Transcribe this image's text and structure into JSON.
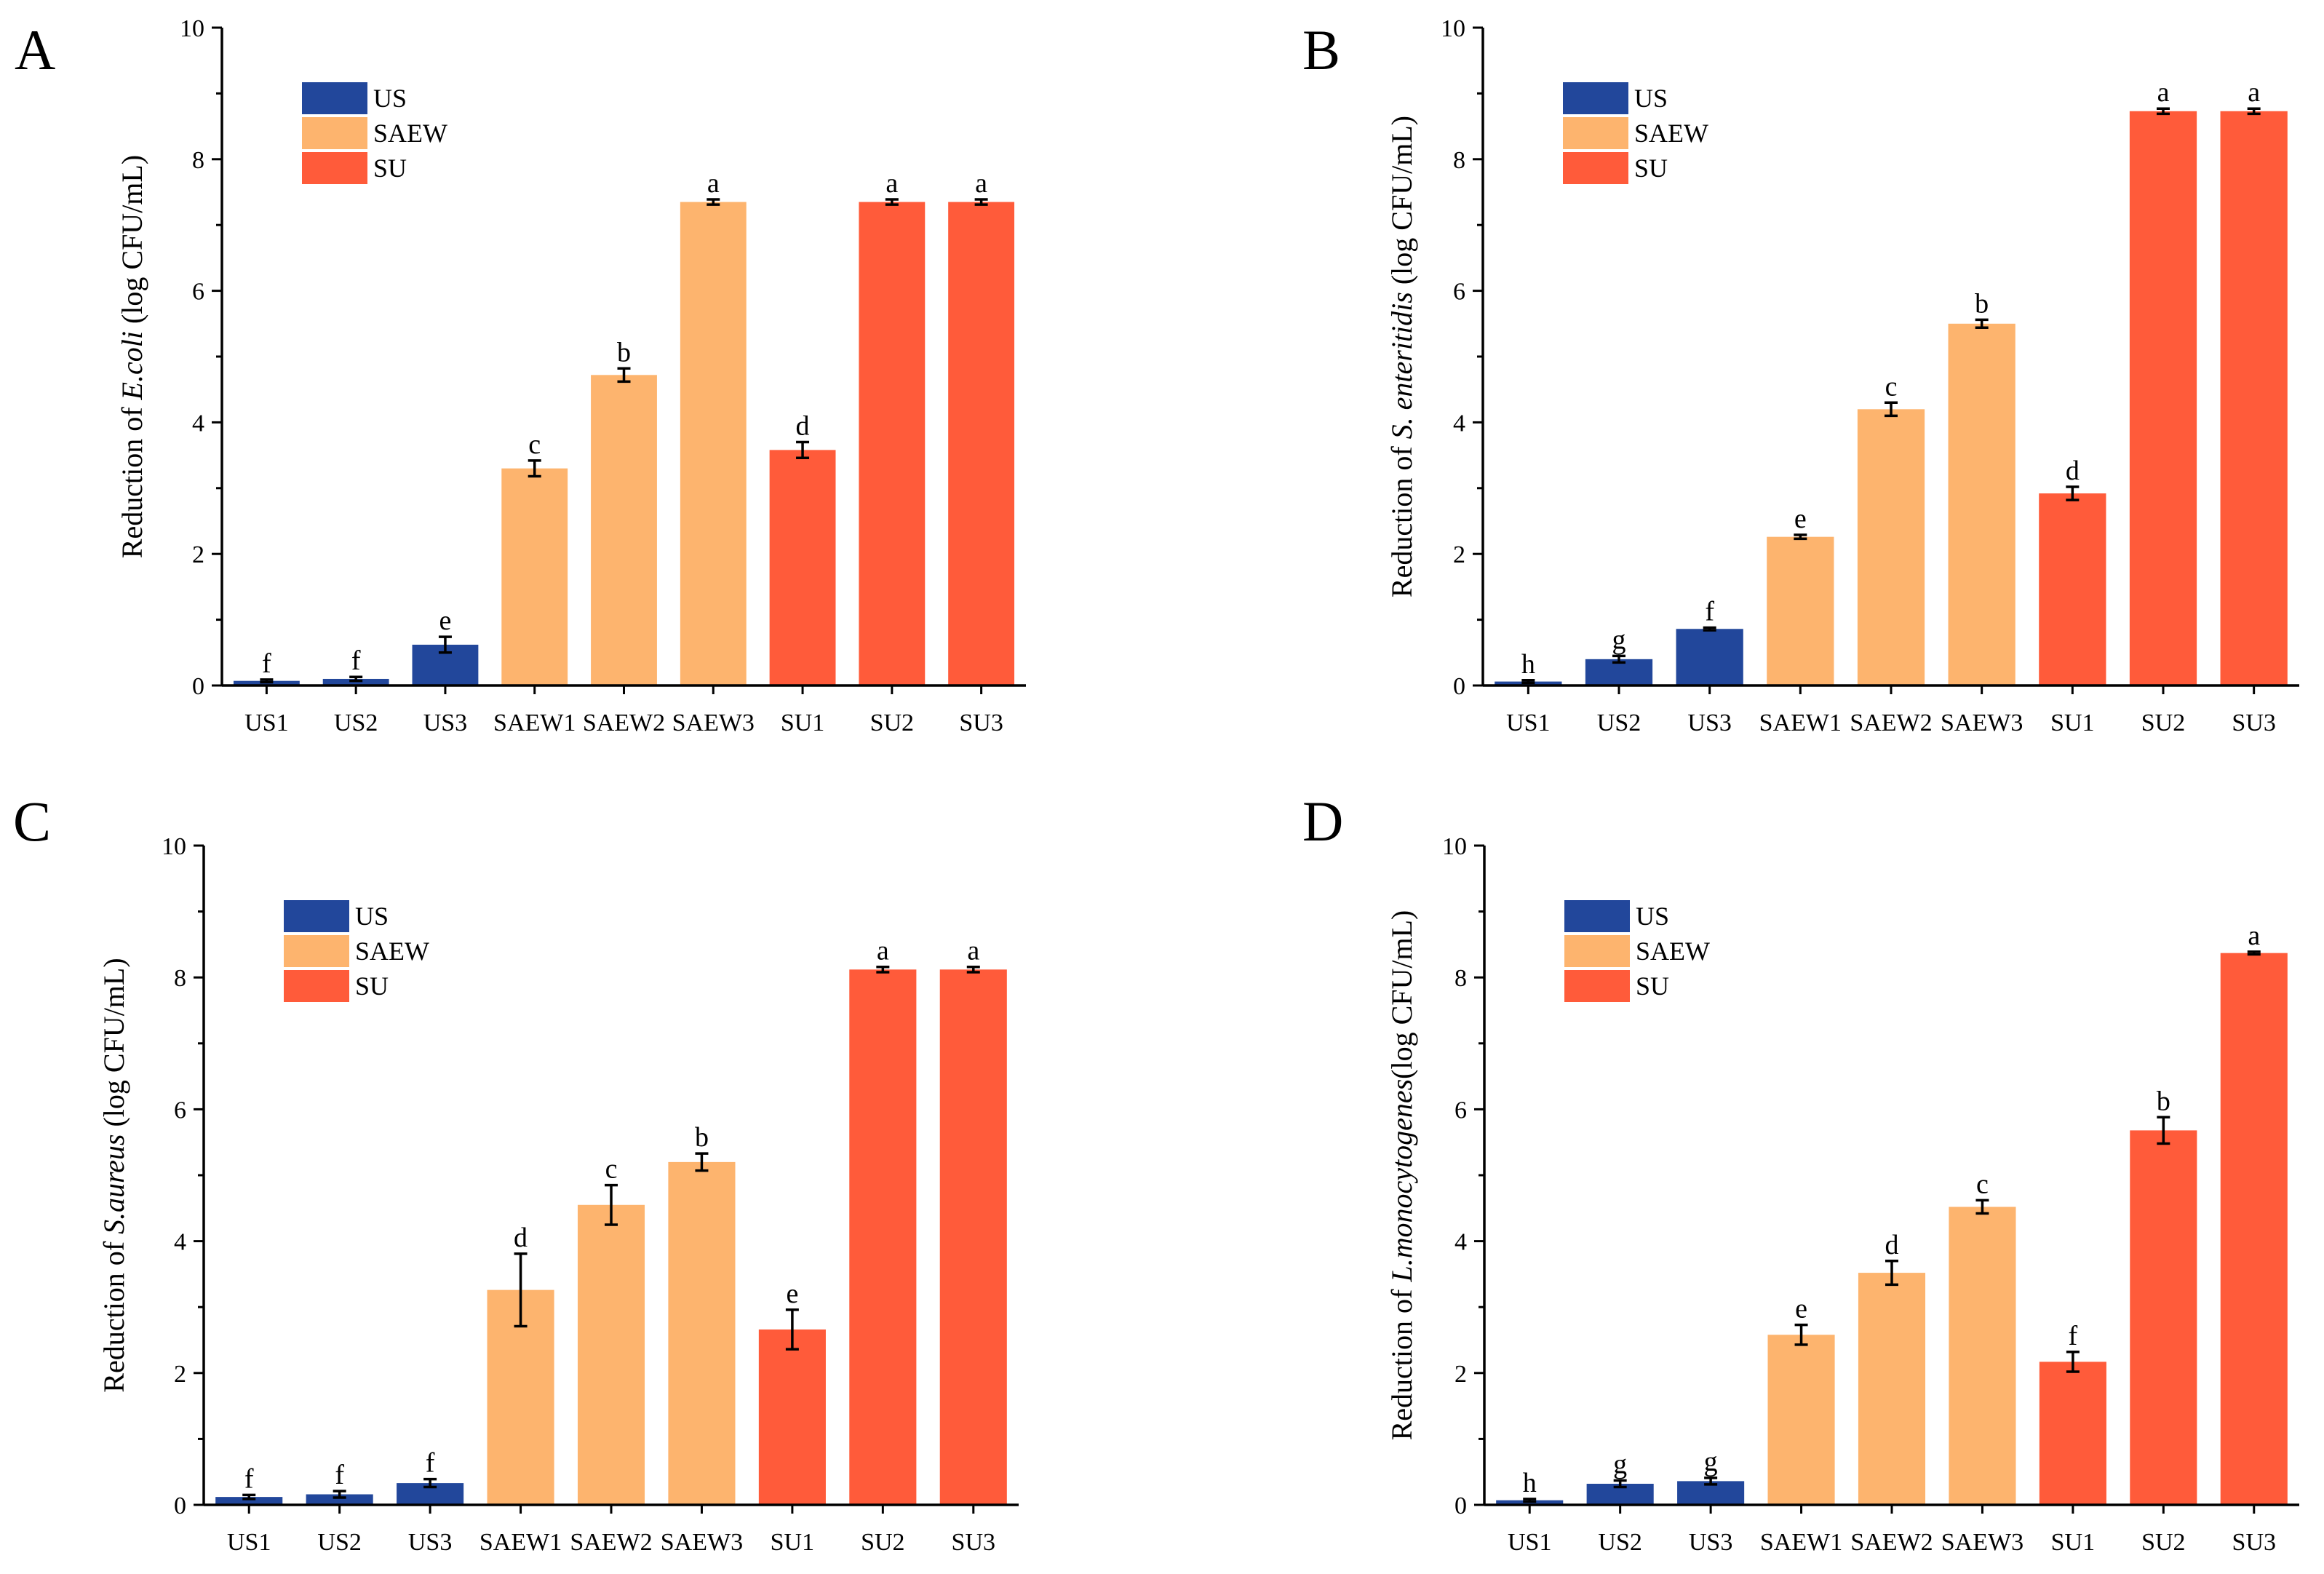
{
  "colors": {
    "US": "#22479b",
    "SAEW": "#fdb46e",
    "SU": "#ff5b3a",
    "axis": "#000000"
  },
  "chart_data": [
    {
      "type": "bar",
      "panel": "A",
      "ylabel_prefix": "Reduction of ",
      "ylabel_species": "E.coli",
      "ylabel_suffix": " (log CFU/mL)",
      "ylim": [
        0,
        10
      ],
      "yticks": [
        0,
        2,
        4,
        6,
        8,
        10
      ],
      "legend": [
        "US",
        "SAEW",
        "SU"
      ],
      "legend_position": "top-left",
      "categories": [
        "US1",
        "US2",
        "US3",
        "SAEW1",
        "SAEW2",
        "SAEW3",
        "SU1",
        "SU2",
        "SU3"
      ],
      "groups": [
        "US",
        "US",
        "US",
        "SAEW",
        "SAEW",
        "SAEW",
        "SU",
        "SU",
        "SU"
      ],
      "values": [
        0.07,
        0.1,
        0.62,
        3.3,
        4.72,
        7.35,
        3.58,
        7.35,
        7.35
      ],
      "errors": [
        0.02,
        0.03,
        0.12,
        0.12,
        0.1,
        0.04,
        0.12,
        0.04,
        0.04
      ],
      "letters": [
        "f",
        "f",
        "e",
        "c",
        "b",
        "a",
        "d",
        "a",
        "a"
      ]
    },
    {
      "type": "bar",
      "panel": "B",
      "ylabel_prefix": "Reduction of ",
      "ylabel_species": "S. enteritidis",
      "ylabel_suffix": " (log CFU/mL)",
      "ylim": [
        0,
        10
      ],
      "yticks": [
        0,
        2,
        4,
        6,
        8,
        10
      ],
      "legend": [
        "US",
        "SAEW",
        "SU"
      ],
      "legend_position": "top-left",
      "categories": [
        "US1",
        "US2",
        "US3",
        "SAEW1",
        "SAEW2",
        "SAEW3",
        "SU1",
        "SU2",
        "SU3"
      ],
      "groups": [
        "US",
        "US",
        "US",
        "SAEW",
        "SAEW",
        "SAEW",
        "SU",
        "SU",
        "SU"
      ],
      "values": [
        0.06,
        0.4,
        0.86,
        2.26,
        4.2,
        5.5,
        2.92,
        8.73,
        8.73
      ],
      "errors": [
        0.02,
        0.05,
        0.02,
        0.03,
        0.1,
        0.06,
        0.1,
        0.04,
        0.04
      ],
      "letters": [
        "h",
        "g",
        "f",
        "e",
        "c",
        "b",
        "d",
        "a",
        "a"
      ]
    },
    {
      "type": "bar",
      "panel": "C",
      "ylabel_prefix": "Reduction of ",
      "ylabel_species": "S.aureus",
      "ylabel_suffix": " (log CFU/mL)",
      "ylim": [
        0,
        10
      ],
      "yticks": [
        0,
        2,
        4,
        6,
        8,
        10
      ],
      "legend": [
        "US",
        "SAEW",
        "SU"
      ],
      "legend_position": "top-left",
      "categories": [
        "US1",
        "US2",
        "US3",
        "SAEW1",
        "SAEW2",
        "SAEW3",
        "SU1",
        "SU2",
        "SU3"
      ],
      "groups": [
        "US",
        "US",
        "US",
        "SAEW",
        "SAEW",
        "SAEW",
        "SU",
        "SU",
        "SU"
      ],
      "values": [
        0.12,
        0.16,
        0.33,
        3.26,
        4.55,
        5.2,
        2.66,
        8.12,
        8.12
      ],
      "errors": [
        0.03,
        0.05,
        0.06,
        0.55,
        0.3,
        0.13,
        0.3,
        0.04,
        0.04
      ],
      "letters": [
        "f",
        "f",
        "f",
        "d",
        "c",
        "b",
        "e",
        "a",
        "a"
      ]
    },
    {
      "type": "bar",
      "panel": "D",
      "ylabel_prefix": "Reduction of ",
      "ylabel_species": "L.monocytogenes",
      "ylabel_suffix": "(log CFU/mL)",
      "ylim": [
        0,
        10
      ],
      "yticks": [
        0,
        2,
        4,
        6,
        8,
        10
      ],
      "legend": [
        "US",
        "SAEW",
        "SU"
      ],
      "legend_position": "top-left",
      "categories": [
        "US1",
        "US2",
        "US3",
        "SAEW1",
        "SAEW2",
        "SAEW3",
        "SU1",
        "SU2",
        "SU3"
      ],
      "groups": [
        "US",
        "US",
        "US",
        "SAEW",
        "SAEW",
        "SAEW",
        "SU",
        "SU",
        "SU"
      ],
      "values": [
        0.07,
        0.32,
        0.36,
        2.58,
        3.52,
        4.52,
        2.17,
        5.68,
        8.37
      ],
      "errors": [
        0.02,
        0.05,
        0.05,
        0.15,
        0.18,
        0.1,
        0.15,
        0.2,
        0.02
      ],
      "letters": [
        "h",
        "g",
        "g",
        "e",
        "d",
        "c",
        "f",
        "b",
        "a"
      ]
    }
  ]
}
